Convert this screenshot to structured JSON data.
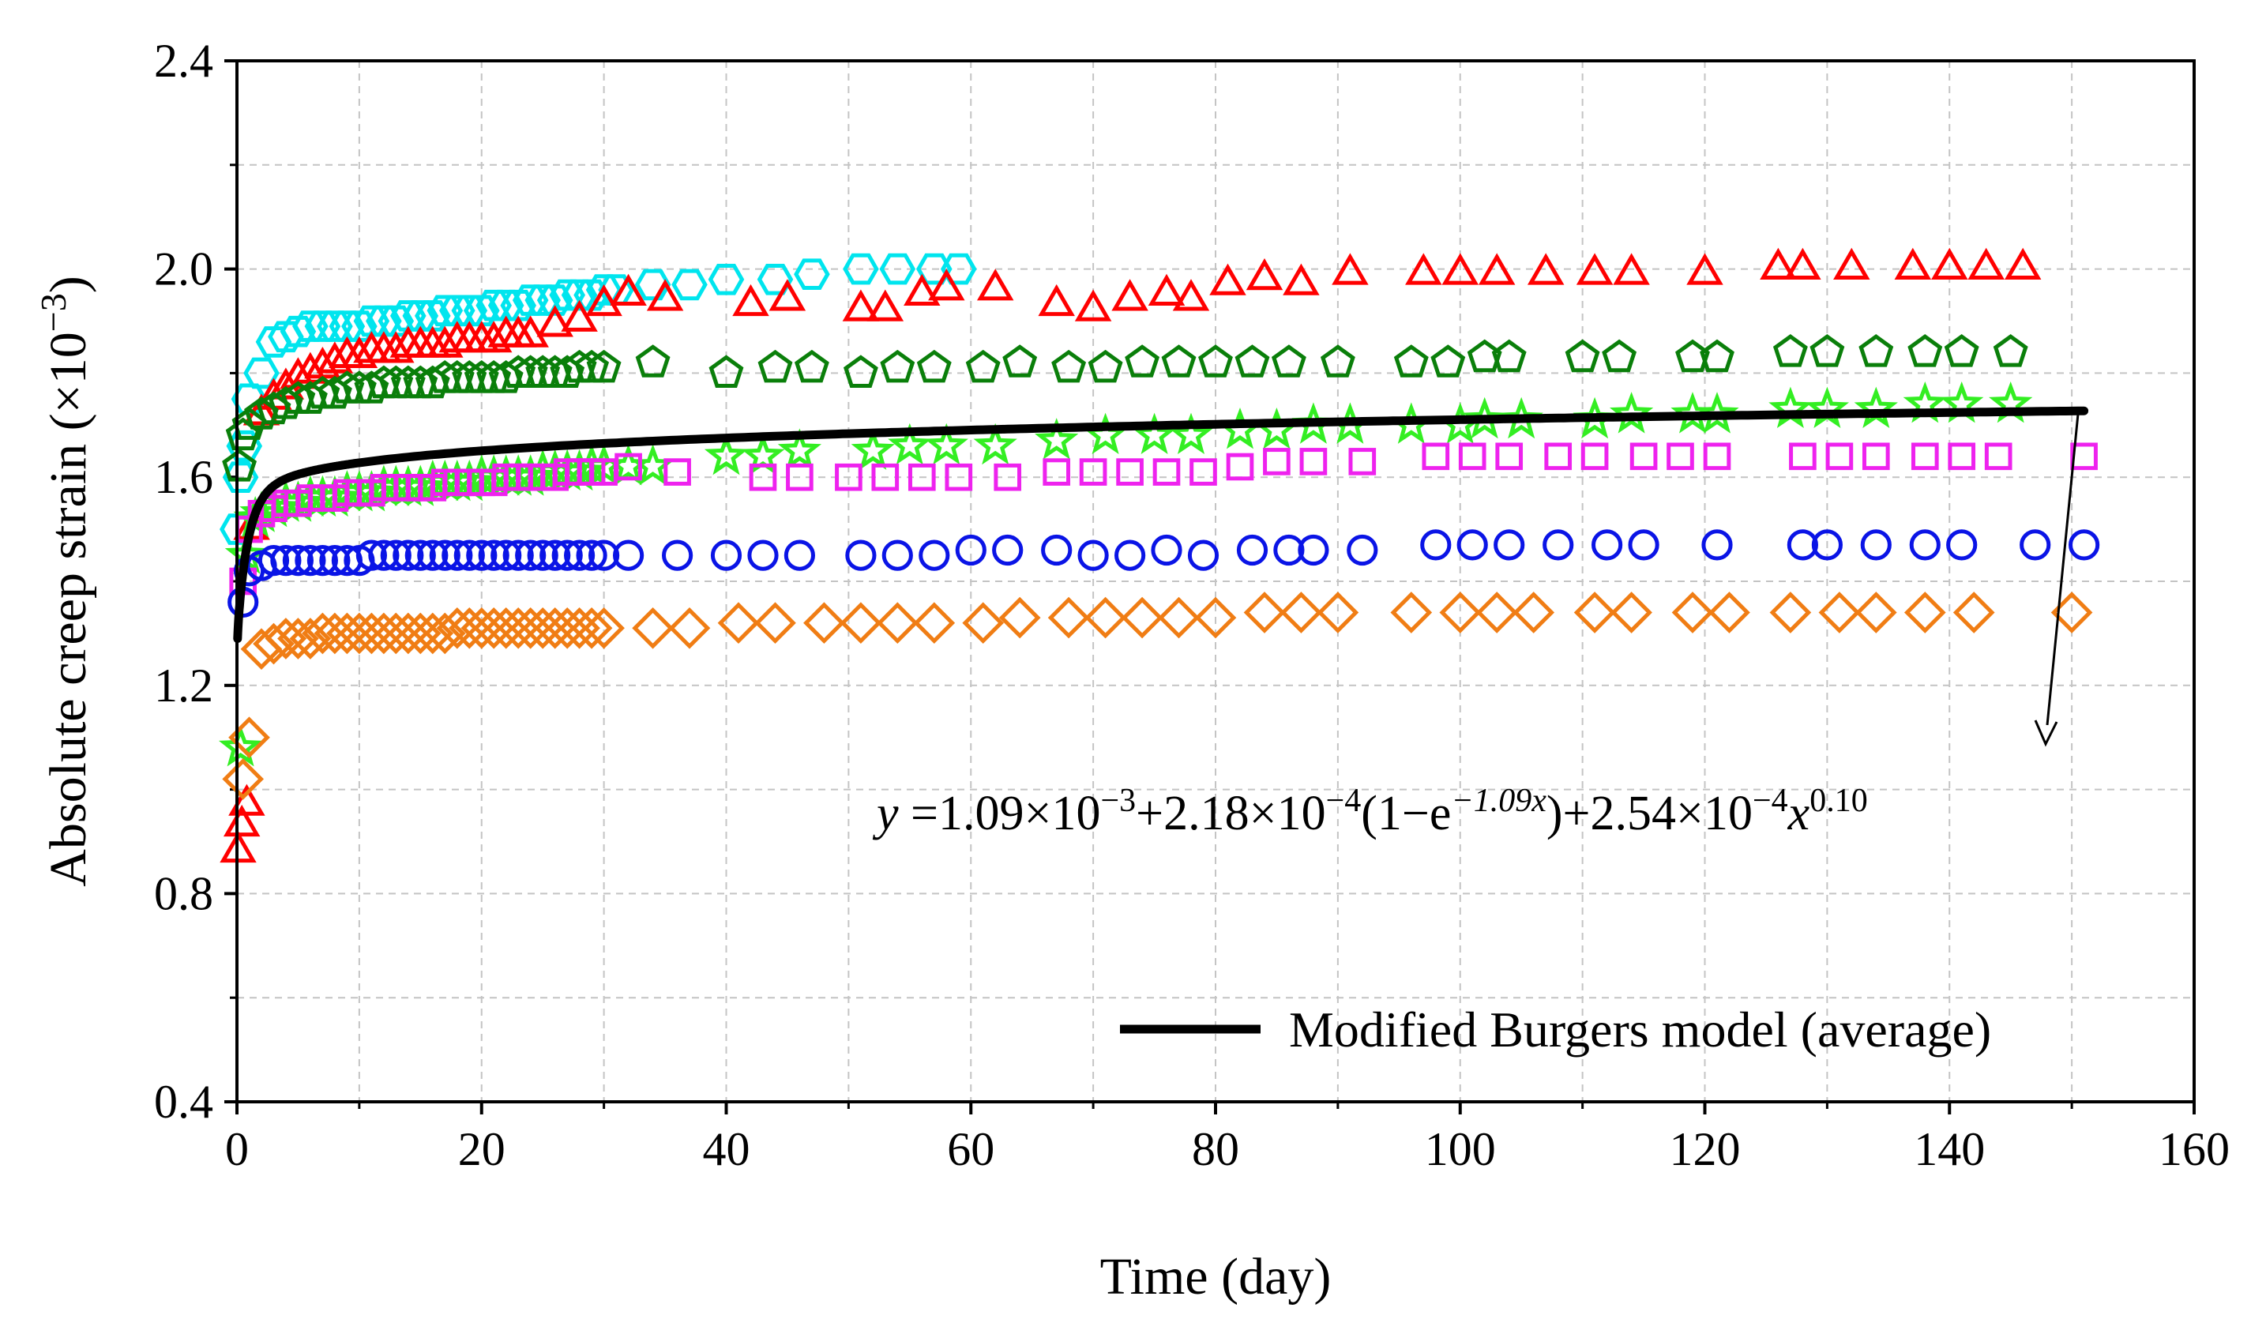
{
  "chart_data": {
    "type": "scatter",
    "xlabel": "Time (day)",
    "ylabel": "Absolute creep strain (×10",
    "ylabel_sup": "−3",
    "ylabel_close": ")",
    "xlim": [
      0,
      160
    ],
    "ylim": [
      0.4,
      2.4
    ],
    "x_ticks": [
      0,
      20,
      40,
      60,
      80,
      100,
      120,
      140,
      160
    ],
    "y_ticks": [
      0.4,
      0.8,
      1.2,
      1.6,
      2.0,
      2.4
    ],
    "x_tick_labels": [
      "0",
      "20",
      "40",
      "60",
      "80",
      "100",
      "120",
      "140",
      "160"
    ],
    "y_tick_labels": [
      "0.4",
      "0.8",
      "1.2",
      "1.6",
      "2.0",
      "2.4"
    ],
    "grid": true,
    "legend_position": "bottom-right",
    "legend": {
      "label": "Modified Burgers model (average)"
    },
    "equation": {
      "y": "y",
      "eq": " =1.09×10",
      "e1": "−3",
      "p2": "+2.18×10",
      "e2": "−4",
      "p3": "(1−e",
      "e3": "−1.09x",
      "p4": ")+2.54×10",
      "e4": "−4",
      "p5": "x",
      "e5": "0.10"
    },
    "model": {
      "a": 1.09,
      "b": 0.218,
      "k": 1.09,
      "c": 0.254,
      "n": 0.1,
      "x_range": [
        0.05,
        151
      ],
      "color": "#000000"
    },
    "series": [
      {
        "marker": "hexagon",
        "color": "#00e5ee",
        "x": [
          0.05,
          0.3,
          0.6,
          1.0,
          2,
          3,
          4,
          5,
          6,
          7,
          8,
          9,
          10,
          11,
          12,
          13,
          14,
          15,
          16,
          17,
          18,
          19,
          20,
          21,
          22,
          23,
          24,
          25,
          26,
          27,
          28,
          29,
          30,
          31,
          34,
          37,
          40,
          44,
          47,
          51,
          54,
          57,
          59
        ],
        "y": [
          1.5,
          1.6,
          1.66,
          1.75,
          1.8,
          1.86,
          1.87,
          1.88,
          1.89,
          1.89,
          1.89,
          1.89,
          1.89,
          1.9,
          1.9,
          1.9,
          1.91,
          1.91,
          1.91,
          1.92,
          1.92,
          1.92,
          1.92,
          1.93,
          1.93,
          1.93,
          1.94,
          1.94,
          1.94,
          1.95,
          1.95,
          1.95,
          1.96,
          1.96,
          1.97,
          1.97,
          1.98,
          1.98,
          1.99,
          2.0,
          2.0,
          2.0,
          2.0
        ]
      },
      {
        "marker": "triangle",
        "color": "#ff0000",
        "x": [
          0.1,
          0.4,
          0.8,
          1.2,
          2,
          3,
          4,
          5,
          6,
          7,
          8,
          9,
          10,
          11,
          12,
          13,
          14,
          15,
          16,
          17,
          18,
          19,
          20,
          21,
          22,
          23,
          24,
          26,
          28,
          30,
          32,
          35,
          42,
          45,
          51,
          53,
          56,
          58,
          62,
          67,
          70,
          73,
          76,
          78,
          81,
          84,
          87,
          91,
          97,
          100,
          103,
          107,
          111,
          114,
          120,
          126,
          128,
          132,
          137,
          140,
          143,
          146
        ],
        "y": [
          0.88,
          0.93,
          0.97,
          1.5,
          1.72,
          1.75,
          1.77,
          1.79,
          1.8,
          1.81,
          1.82,
          1.83,
          1.83,
          1.84,
          1.84,
          1.84,
          1.85,
          1.85,
          1.85,
          1.85,
          1.86,
          1.86,
          1.86,
          1.86,
          1.87,
          1.87,
          1.87,
          1.89,
          1.9,
          1.93,
          1.95,
          1.94,
          1.93,
          1.94,
          1.92,
          1.92,
          1.95,
          1.96,
          1.96,
          1.93,
          1.92,
          1.94,
          1.95,
          1.94,
          1.97,
          1.98,
          1.97,
          1.99,
          1.99,
          1.99,
          1.99,
          1.99,
          1.99,
          1.99,
          1.99,
          2.0,
          2.0,
          2.0,
          2.0,
          2.0,
          2.0,
          2.0
        ]
      },
      {
        "marker": "pentagon",
        "color": "#0a7f0a",
        "x": [
          0.2,
          0.5,
          1,
          2,
          3,
          4,
          5,
          6,
          7,
          8,
          9,
          10,
          11,
          12,
          13,
          14,
          15,
          16,
          17,
          18,
          19,
          20,
          21,
          22,
          23,
          24,
          25,
          26,
          27,
          28,
          29,
          30,
          34,
          40,
          44,
          47,
          51,
          54,
          57,
          61,
          64,
          68,
          71,
          74,
          77,
          80,
          83,
          86,
          90,
          96,
          99,
          102,
          104,
          110,
          113,
          119,
          121,
          127,
          130,
          134,
          138,
          141,
          145
        ],
        "y": [
          1.62,
          1.68,
          1.7,
          1.72,
          1.73,
          1.74,
          1.75,
          1.75,
          1.76,
          1.76,
          1.77,
          1.77,
          1.77,
          1.78,
          1.78,
          1.78,
          1.78,
          1.78,
          1.79,
          1.79,
          1.79,
          1.79,
          1.79,
          1.79,
          1.8,
          1.8,
          1.8,
          1.8,
          1.8,
          1.81,
          1.81,
          1.81,
          1.82,
          1.8,
          1.81,
          1.81,
          1.8,
          1.81,
          1.81,
          1.81,
          1.82,
          1.81,
          1.81,
          1.82,
          1.82,
          1.82,
          1.82,
          1.82,
          1.82,
          1.82,
          1.82,
          1.83,
          1.83,
          1.83,
          1.83,
          1.83,
          1.83,
          1.84,
          1.84,
          1.84,
          1.84,
          1.84,
          1.84
        ]
      },
      {
        "marker": "star",
        "color": "#33ee22",
        "x": [
          0.3,
          0.8,
          1.5,
          2,
          3,
          4,
          5,
          6,
          7,
          8,
          9,
          10,
          11,
          12,
          13,
          14,
          15,
          16,
          17,
          18,
          19,
          20,
          21,
          22,
          23,
          24,
          25,
          26,
          27,
          28,
          29,
          30,
          32,
          34,
          40,
          43,
          46,
          52,
          55,
          58,
          62,
          67,
          71,
          75,
          78,
          82,
          85,
          88,
          91,
          96,
          100,
          102,
          105,
          111,
          114,
          119,
          121,
          127,
          130,
          134,
          138,
          141,
          145
        ],
        "y": [
          1.08,
          1.45,
          1.52,
          1.53,
          1.54,
          1.55,
          1.55,
          1.56,
          1.56,
          1.56,
          1.57,
          1.57,
          1.57,
          1.58,
          1.58,
          1.58,
          1.58,
          1.59,
          1.59,
          1.59,
          1.59,
          1.6,
          1.6,
          1.6,
          1.6,
          1.6,
          1.61,
          1.61,
          1.61,
          1.61,
          1.62,
          1.62,
          1.62,
          1.62,
          1.64,
          1.64,
          1.65,
          1.65,
          1.66,
          1.66,
          1.66,
          1.67,
          1.68,
          1.68,
          1.68,
          1.69,
          1.69,
          1.7,
          1.7,
          1.7,
          1.7,
          1.71,
          1.71,
          1.71,
          1.72,
          1.72,
          1.72,
          1.73,
          1.73,
          1.73,
          1.74,
          1.74,
          1.74
        ]
      },
      {
        "marker": "square",
        "color": "#ee22ee",
        "x": [
          0.5,
          1,
          2,
          3,
          4,
          5,
          6,
          7,
          8,
          9,
          10,
          11,
          12,
          13,
          14,
          15,
          16,
          17,
          18,
          19,
          20,
          21,
          22,
          23,
          24,
          25,
          26,
          27,
          28,
          29,
          30,
          32,
          36,
          43,
          46,
          50,
          53,
          56,
          59,
          63,
          67,
          70,
          73,
          76,
          79,
          82,
          85,
          88,
          92,
          98,
          101,
          104,
          108,
          111,
          115,
          118,
          121,
          128,
          131,
          134,
          138,
          141,
          144,
          151
        ],
        "y": [
          1.4,
          1.5,
          1.53,
          1.54,
          1.55,
          1.55,
          1.56,
          1.56,
          1.56,
          1.57,
          1.57,
          1.57,
          1.58,
          1.58,
          1.58,
          1.58,
          1.58,
          1.59,
          1.59,
          1.59,
          1.59,
          1.59,
          1.6,
          1.6,
          1.6,
          1.6,
          1.6,
          1.61,
          1.61,
          1.61,
          1.61,
          1.62,
          1.61,
          1.6,
          1.6,
          1.6,
          1.6,
          1.6,
          1.6,
          1.6,
          1.61,
          1.61,
          1.61,
          1.61,
          1.61,
          1.62,
          1.63,
          1.63,
          1.63,
          1.64,
          1.64,
          1.64,
          1.64,
          1.64,
          1.64,
          1.64,
          1.64,
          1.64,
          1.64,
          1.64,
          1.64,
          1.64,
          1.64,
          1.64
        ]
      },
      {
        "marker": "circle",
        "color": "#0a14e6",
        "x": [
          0.5,
          1,
          2,
          3,
          4,
          5,
          6,
          7,
          8,
          9,
          10,
          11,
          12,
          13,
          14,
          15,
          16,
          17,
          18,
          19,
          20,
          21,
          22,
          23,
          24,
          25,
          26,
          27,
          28,
          29,
          30,
          32,
          36,
          40,
          43,
          46,
          51,
          54,
          57,
          60,
          63,
          67,
          70,
          73,
          76,
          79,
          83,
          86,
          88,
          92,
          98,
          101,
          104,
          108,
          112,
          115,
          121,
          128,
          130,
          134,
          138,
          141,
          147,
          151
        ],
        "y": [
          1.36,
          1.42,
          1.43,
          1.44,
          1.44,
          1.44,
          1.44,
          1.44,
          1.44,
          1.44,
          1.44,
          1.45,
          1.45,
          1.45,
          1.45,
          1.45,
          1.45,
          1.45,
          1.45,
          1.45,
          1.45,
          1.45,
          1.45,
          1.45,
          1.45,
          1.45,
          1.45,
          1.45,
          1.45,
          1.45,
          1.45,
          1.45,
          1.45,
          1.45,
          1.45,
          1.45,
          1.45,
          1.45,
          1.45,
          1.46,
          1.46,
          1.46,
          1.45,
          1.45,
          1.46,
          1.45,
          1.46,
          1.46,
          1.46,
          1.46,
          1.47,
          1.47,
          1.47,
          1.47,
          1.47,
          1.47,
          1.47,
          1.47,
          1.47,
          1.47,
          1.47,
          1.47,
          1.47,
          1.47
        ]
      },
      {
        "marker": "diamond",
        "color": "#f07d14",
        "x": [
          0.5,
          1,
          2,
          3,
          4,
          5,
          6,
          7,
          8,
          9,
          10,
          11,
          12,
          13,
          14,
          15,
          16,
          17,
          18,
          19,
          20,
          21,
          22,
          23,
          24,
          25,
          26,
          27,
          28,
          29,
          30,
          34,
          37,
          41,
          44,
          48,
          51,
          54,
          57,
          61,
          64,
          68,
          71,
          74,
          77,
          80,
          84,
          87,
          90,
          96,
          100,
          103,
          106,
          111,
          114,
          119,
          122,
          127,
          131,
          134,
          138,
          142,
          150
        ],
        "y": [
          1.02,
          1.1,
          1.27,
          1.28,
          1.29,
          1.29,
          1.29,
          1.3,
          1.3,
          1.3,
          1.3,
          1.3,
          1.3,
          1.3,
          1.3,
          1.3,
          1.3,
          1.3,
          1.31,
          1.31,
          1.31,
          1.31,
          1.31,
          1.31,
          1.31,
          1.31,
          1.31,
          1.31,
          1.31,
          1.31,
          1.31,
          1.31,
          1.31,
          1.32,
          1.32,
          1.32,
          1.32,
          1.32,
          1.32,
          1.32,
          1.33,
          1.33,
          1.33,
          1.33,
          1.33,
          1.33,
          1.34,
          1.34,
          1.34,
          1.34,
          1.34,
          1.34,
          1.34,
          1.34,
          1.34,
          1.34,
          1.34,
          1.34,
          1.34,
          1.34,
          1.34,
          1.34,
          1.34
        ]
      }
    ]
  }
}
